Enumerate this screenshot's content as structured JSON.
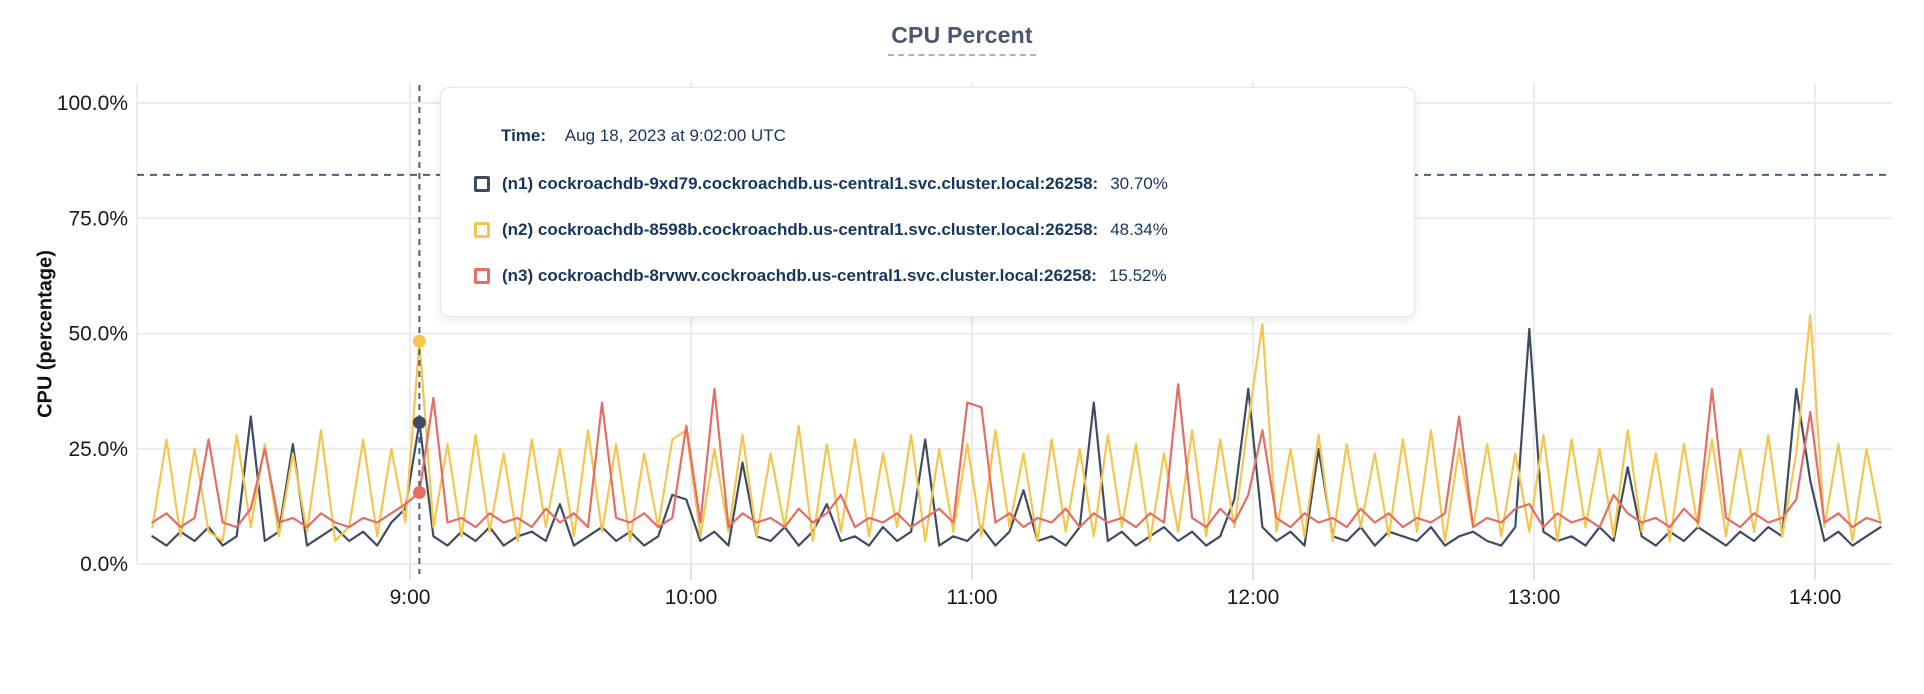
{
  "header": {
    "title": "CPU Percent"
  },
  "tooltip": {
    "time_label": "Time:"
  },
  "chart_data": {
    "type": "line",
    "title": "CPU Percent",
    "xlabel": "",
    "ylabel": "CPU (percentage)",
    "ylim": [
      0,
      100
    ],
    "grid": true,
    "legend_position": "tooltip-overlay",
    "y_ticks": [
      {
        "label": "0.0%",
        "value": 0
      },
      {
        "label": "25.0%",
        "value": 25
      },
      {
        "label": "50.0%",
        "value": 50
      },
      {
        "label": "75.0%",
        "value": 75
      },
      {
        "label": "100.0%",
        "value": 100
      }
    ],
    "x_ticks": [
      {
        "label": "9:00",
        "minutes": 60
      },
      {
        "label": "10:00",
        "minutes": 120
      },
      {
        "label": "11:00",
        "minutes": 180
      },
      {
        "label": "12:00",
        "minutes": 240
      },
      {
        "label": "13:00",
        "minutes": 300
      },
      {
        "label": "14:00",
        "minutes": 360
      }
    ],
    "x_domain_note": "minutes after 8:00 UTC",
    "threshold_dashed_value": 84.4,
    "hover": {
      "time_display": "Aug 18, 2023 at 9:02:00 UTC",
      "x_minutes": 62,
      "points": [
        {
          "series": "n1",
          "value": 30.7,
          "display": "30.70%"
        },
        {
          "series": "n2",
          "value": 48.34,
          "display": "48.34%"
        },
        {
          "series": "n3",
          "value": 15.52,
          "display": "15.52%"
        }
      ]
    },
    "sample_start_minutes": 5,
    "sample_step_minutes": 3,
    "series": [
      {
        "id": "n1",
        "label": "(n1) cockroachdb-9xd79.cockroachdb.us-central1.svc.cluster.local:26258:",
        "color": "#3e4c63",
        "values": [
          6,
          4,
          7,
          5,
          8,
          4,
          6,
          32,
          5,
          7,
          26,
          4,
          6,
          8,
          5,
          7,
          4,
          9,
          12,
          30.7,
          6,
          4,
          7,
          5,
          8,
          4,
          6,
          7,
          5,
          13,
          4,
          6,
          8,
          5,
          7,
          4,
          6,
          15,
          14,
          5,
          7,
          4,
          22,
          6,
          5,
          8,
          4,
          7,
          13,
          5,
          6,
          4,
          8,
          5,
          7,
          27,
          4,
          6,
          5,
          8,
          4,
          7,
          16,
          5,
          6,
          4,
          8,
          35,
          5,
          7,
          4,
          6,
          8,
          5,
          7,
          4,
          6,
          14,
          38,
          8,
          5,
          7,
          4,
          25,
          6,
          5,
          8,
          4,
          7,
          6,
          5,
          8,
          4,
          6,
          7,
          5,
          4,
          8,
          51,
          7,
          5,
          6,
          4,
          8,
          5,
          21,
          6,
          4,
          7,
          5,
          8,
          6,
          4,
          7,
          5,
          8,
          6,
          38,
          18,
          5,
          7,
          4,
          6,
          8
        ]
      },
      {
        "id": "n2",
        "label": "(n2) cockroachdb-8598b.cockroachdb.us-central1.svc.cluster.local:26258:",
        "color": "#f5c64f",
        "values": [
          8,
          27,
          6,
          25,
          7,
          5,
          28,
          8,
          26,
          6,
          24,
          7,
          29,
          5,
          8,
          27,
          6,
          25,
          9,
          48.34,
          8,
          26,
          6,
          28,
          7,
          24,
          5,
          27,
          8,
          25,
          6,
          29,
          7,
          26,
          5,
          24,
          8,
          27,
          29,
          6,
          25,
          7,
          28,
          6,
          24,
          8,
          30,
          5,
          26,
          7,
          27,
          6,
          24,
          8,
          28,
          5,
          25,
          7,
          26,
          6,
          29,
          8,
          24,
          5,
          27,
          7,
          25,
          6,
          28,
          8,
          26,
          5,
          24,
          7,
          29,
          6,
          27,
          8,
          31,
          52,
          7,
          25,
          6,
          28,
          5,
          26,
          8,
          24,
          6,
          27,
          7,
          29,
          5,
          25,
          8,
          26,
          6,
          24,
          7,
          28,
          5,
          27,
          8,
          25,
          6,
          29,
          7,
          24,
          5,
          26,
          8,
          27,
          6,
          25,
          7,
          28,
          6,
          24,
          54,
          8,
          26,
          5,
          25,
          9
        ]
      },
      {
        "id": "n3",
        "label": "(n3) cockroachdb-8rvwv.cockroachdb.us-central1.svc.cluster.local:26258:",
        "color": "#e36e64",
        "values": [
          9,
          11,
          8,
          10,
          27,
          9,
          8,
          12,
          25,
          9,
          10,
          8,
          11,
          9,
          8,
          10,
          9,
          11,
          13,
          15.52,
          36,
          9,
          10,
          8,
          11,
          9,
          10,
          8,
          12,
          9,
          11,
          8,
          35,
          10,
          9,
          11,
          8,
          10,
          30,
          9,
          38,
          8,
          11,
          9,
          10,
          8,
          12,
          9,
          11,
          15,
          8,
          10,
          9,
          11,
          8,
          10,
          12,
          9,
          35,
          34,
          9,
          11,
          8,
          10,
          9,
          12,
          8,
          11,
          9,
          10,
          8,
          11,
          9,
          39,
          10,
          8,
          12,
          9,
          15,
          29,
          10,
          8,
          11,
          9,
          10,
          8,
          12,
          9,
          11,
          8,
          10,
          9,
          11,
          32,
          8,
          10,
          9,
          12,
          13,
          8,
          11,
          9,
          10,
          8,
          15,
          11,
          9,
          10,
          8,
          12,
          9,
          38,
          10,
          8,
          11,
          9,
          10,
          14,
          33,
          9,
          11,
          8,
          10,
          9
        ]
      }
    ],
    "colors": {
      "grid": "#ececec",
      "dashed_guides": "#4a6078",
      "axis_text": "#1a1a1a",
      "title_text": "#475872",
      "tooltip_text": "#15375f"
    }
  }
}
